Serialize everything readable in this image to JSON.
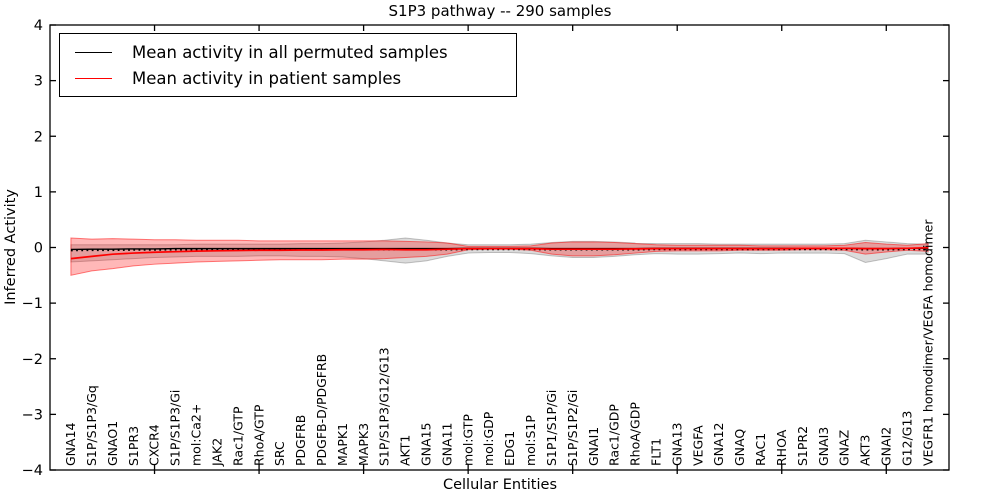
{
  "chart_data": {
    "type": "line",
    "title": "S1P3 pathway -- 290 samples",
    "xlabel": "Cellular Entities",
    "ylabel": "Inferred Activity",
    "ylim": [
      -4,
      4
    ],
    "yticks": [
      4,
      3,
      2,
      1,
      0,
      -1,
      -2,
      -3,
      -4
    ],
    "xtick_positions": [
      5,
      10,
      15,
      20,
      25,
      30,
      35,
      40
    ],
    "grid": false,
    "legend_position": "upper-left",
    "x_entities": [
      "GNA14",
      "S1P/S1P3/Gq",
      "GNAO1",
      "S1PR3",
      "CXCR4",
      "S1P/S1P3/Gi",
      "mol:Ca2+",
      "JAK2",
      "Rac1/GTP",
      "RhoA/GTP",
      "SRC",
      "PDGFRB",
      "PDGFB-D/PDGFRB",
      "MAPK1",
      "MAPK3",
      "S1P/S1P3/G12/G13",
      "AKT1",
      "GNA15",
      "GNA11",
      "mol:GTP",
      "mol:GDP",
      "EDG1",
      "mol:S1P",
      "S1P1/S1P/Gi",
      "S1P/S1P2/Gi",
      "GNAI1",
      "Rac1/GDP",
      "RhoA/GDP",
      "FLT1",
      "GNA13",
      "VEGFA",
      "GNA12",
      "GNAQ",
      "RAC1",
      "RHOA",
      "S1PR2",
      "GNAI3",
      "GNAZ",
      "AKT3",
      "GNAI2",
      "G12/G13",
      "VEGFR1 homodimer/VEGFA homodimer"
    ],
    "series": [
      {
        "name": "Mean activity in all permuted samples",
        "color": "#000000",
        "style": "solid",
        "band_fill": "rgba(0,0,0,0.14)",
        "band_edge": "rgba(0,0,0,0.22)",
        "values": [
          -0.035,
          -0.03,
          -0.03,
          -0.025,
          -0.025,
          -0.02,
          -0.02,
          -0.02,
          -0.02,
          -0.02,
          -0.02,
          -0.02,
          -0.02,
          -0.02,
          -0.02,
          -0.02,
          -0.02,
          -0.02,
          -0.02,
          -0.015,
          -0.015,
          -0.015,
          -0.015,
          -0.02,
          -0.02,
          -0.02,
          -0.02,
          -0.02,
          -0.015,
          -0.015,
          -0.015,
          -0.015,
          -0.015,
          -0.015,
          -0.015,
          -0.015,
          -0.015,
          -0.015,
          -0.02,
          -0.02,
          -0.015,
          -0.015
        ],
        "band_low": [
          -0.26,
          -0.24,
          -0.22,
          -0.2,
          -0.18,
          -0.17,
          -0.16,
          -0.16,
          -0.16,
          -0.15,
          -0.15,
          -0.16,
          -0.16,
          -0.17,
          -0.2,
          -0.24,
          -0.28,
          -0.24,
          -0.16,
          -0.1,
          -0.09,
          -0.09,
          -0.11,
          -0.15,
          -0.18,
          -0.18,
          -0.16,
          -0.13,
          -0.11,
          -0.12,
          -0.12,
          -0.11,
          -0.1,
          -0.11,
          -0.1,
          -0.1,
          -0.1,
          -0.11,
          -0.27,
          -0.2,
          -0.12,
          -0.12
        ],
        "band_high": [
          0.05,
          0.05,
          0.05,
          0.05,
          0.05,
          0.05,
          0.06,
          0.06,
          0.06,
          0.06,
          0.06,
          0.07,
          0.07,
          0.08,
          0.1,
          0.13,
          0.17,
          0.13,
          0.08,
          0.05,
          0.05,
          0.05,
          0.06,
          0.09,
          0.11,
          0.11,
          0.1,
          0.08,
          0.07,
          0.07,
          0.07,
          0.06,
          0.06,
          0.06,
          0.06,
          0.06,
          0.06,
          0.07,
          0.13,
          0.1,
          0.07,
          0.06
        ]
      },
      {
        "name": "Mean activity in patient samples",
        "color": "#ff0000",
        "style": "solid",
        "band_fill": "rgba(255,0,0,0.28)",
        "band_edge": "rgba(255,0,0,0.5)",
        "values": [
          -0.2,
          -0.16,
          -0.12,
          -0.1,
          -0.085,
          -0.075,
          -0.065,
          -0.06,
          -0.055,
          -0.05,
          -0.05,
          -0.045,
          -0.045,
          -0.04,
          -0.04,
          -0.035,
          -0.04,
          -0.04,
          -0.03,
          -0.02,
          -0.02,
          -0.02,
          -0.02,
          -0.03,
          -0.03,
          -0.03,
          -0.03,
          -0.025,
          -0.02,
          -0.02,
          -0.02,
          -0.02,
          -0.02,
          -0.02,
          -0.02,
          -0.015,
          -0.015,
          -0.015,
          -0.02,
          -0.02,
          -0.015,
          -0.005
        ],
        "band_low": [
          -0.5,
          -0.42,
          -0.38,
          -0.33,
          -0.3,
          -0.28,
          -0.26,
          -0.25,
          -0.24,
          -0.23,
          -0.22,
          -0.22,
          -0.22,
          -0.21,
          -0.21,
          -0.2,
          -0.18,
          -0.16,
          -0.12,
          -0.04,
          -0.03,
          -0.03,
          -0.05,
          -0.12,
          -0.15,
          -0.15,
          -0.13,
          -0.1,
          -0.07,
          -0.06,
          -0.06,
          -0.06,
          -0.05,
          -0.05,
          -0.05,
          -0.04,
          -0.04,
          -0.05,
          -0.12,
          -0.08,
          -0.05,
          -0.07
        ],
        "band_high": [
          0.17,
          0.15,
          0.16,
          0.15,
          0.14,
          0.14,
          0.13,
          0.13,
          0.13,
          0.12,
          0.12,
          0.12,
          0.12,
          0.12,
          0.12,
          0.12,
          0.11,
          0.1,
          0.08,
          0.02,
          0.02,
          0.02,
          0.03,
          0.08,
          0.1,
          0.1,
          0.09,
          0.07,
          0.05,
          0.04,
          0.04,
          0.04,
          0.04,
          0.03,
          0.03,
          0.03,
          0.03,
          0.04,
          0.09,
          0.06,
          0.04,
          0.07
        ]
      },
      {
        "name": "dotted reference",
        "color": "#000000",
        "style": "dotted",
        "values": [
          -0.055,
          -0.05,
          -0.05,
          -0.045,
          -0.045,
          -0.04,
          -0.04,
          -0.04,
          -0.04,
          -0.04,
          -0.04,
          -0.04,
          -0.04,
          -0.04,
          -0.04,
          -0.04,
          -0.04,
          -0.04,
          -0.04,
          -0.035,
          -0.035,
          -0.035,
          -0.035,
          -0.04,
          -0.04,
          -0.04,
          -0.04,
          -0.04,
          -0.035,
          -0.035,
          -0.035,
          -0.035,
          -0.035,
          -0.035,
          -0.035,
          -0.035,
          -0.035,
          -0.035,
          -0.04,
          -0.04,
          -0.035,
          -0.035
        ]
      }
    ]
  }
}
